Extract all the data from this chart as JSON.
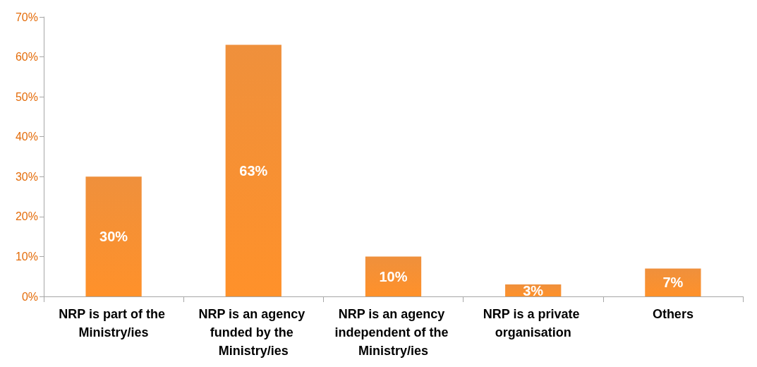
{
  "chart_data": {
    "type": "bar",
    "categories": [
      "NRP is part of the Ministry/ies",
      "NRP is an agency funded by the Ministry/ies",
      "NRP is an agency independent of the Ministry/ies",
      "NRP is a private organisation",
      "Others"
    ],
    "values": [
      30,
      63,
      10,
      3,
      7
    ],
    "value_labels": [
      "30%",
      "63%",
      "10%",
      "3%",
      "7%"
    ],
    "color": "#ee8427",
    "ylim": [
      0,
      70
    ],
    "yticks": [
      {
        "value": 0,
        "label": "0%"
      },
      {
        "value": 10,
        "label": "10%"
      },
      {
        "value": 20,
        "label": "20%"
      },
      {
        "value": 30,
        "label": "30%"
      },
      {
        "value": 40,
        "label": "40%"
      },
      {
        "value": 50,
        "label": "50%"
      },
      {
        "value": 60,
        "label": "60%"
      },
      {
        "value": 70,
        "label": "70%"
      }
    ],
    "grid": false
  }
}
